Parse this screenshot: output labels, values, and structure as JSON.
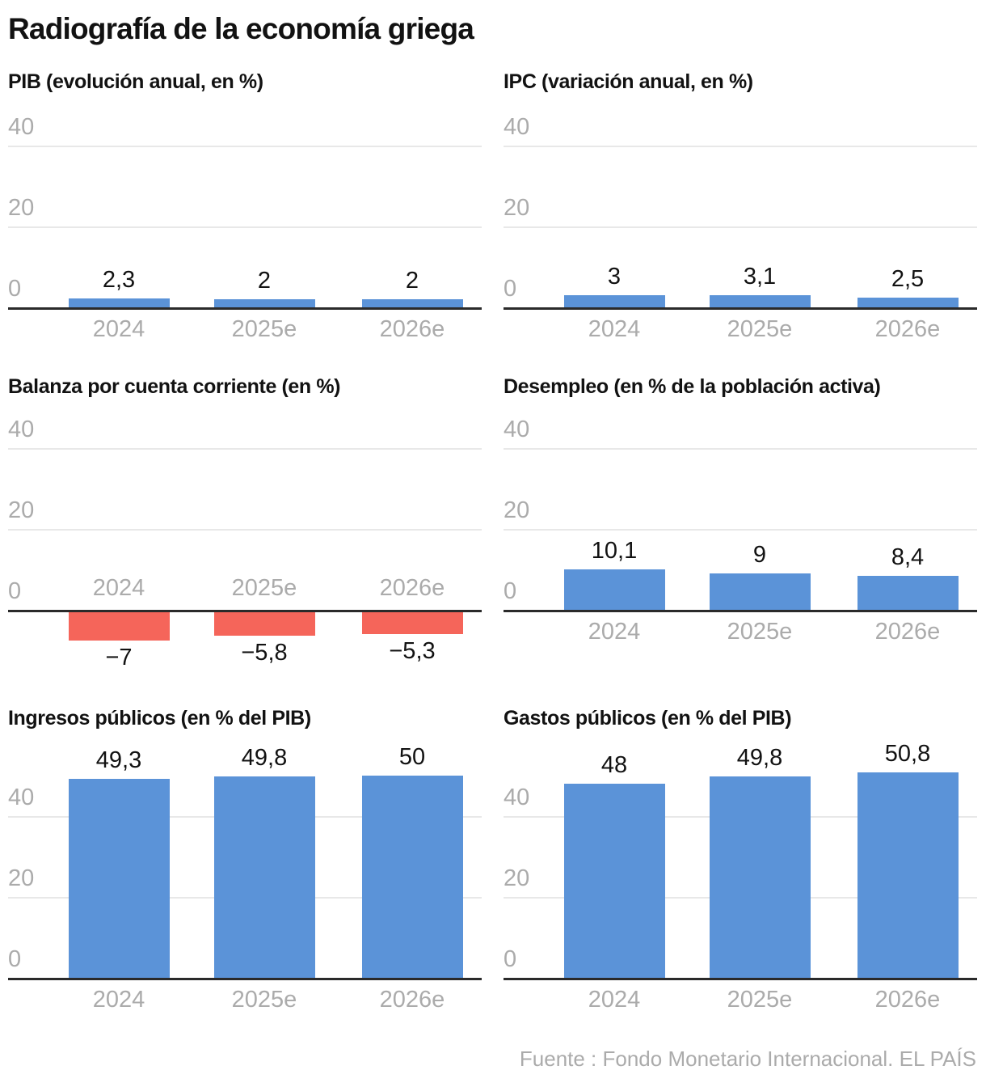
{
  "page": {
    "title": "Radiografía de la economía griega",
    "source": "Fuente : Fondo Monetario Internacional. EL PAÍS"
  },
  "colors": {
    "bar_positive": "#5B93D8",
    "bar_negative": "#F5655A",
    "text": "#121212",
    "muted_labels": "#ABABAB",
    "gridline": "#E8E8E8",
    "axis": "#2A2A2A"
  },
  "chart_data": [
    {
      "type": "bar",
      "title": "PIB (evolución anual, en %)",
      "categories": [
        "2024",
        "2025e",
        "2026e"
      ],
      "values": [
        2.3,
        2,
        2
      ],
      "value_labels": [
        "2,3",
        "2",
        "2"
      ],
      "yticks": [
        0,
        20,
        40
      ],
      "ylim": [
        0,
        48
      ],
      "grid": true,
      "legend": "none"
    },
    {
      "type": "bar",
      "title": "IPC (variación anual, en %)",
      "categories": [
        "2024",
        "2025e",
        "2026e"
      ],
      "values": [
        3,
        3.1,
        2.5
      ],
      "value_labels": [
        "3",
        "3,1",
        "2,5"
      ],
      "yticks": [
        0,
        20,
        40
      ],
      "ylim": [
        0,
        48
      ],
      "grid": true,
      "legend": "none"
    },
    {
      "type": "bar",
      "title": "Balanza por cuenta corriente (en %)",
      "categories": [
        "2024",
        "2025e",
        "2026e"
      ],
      "values": [
        -7,
        -5.8,
        -5.3
      ],
      "value_labels": [
        "−7",
        "−5,8",
        "−5,3"
      ],
      "yticks": [
        0,
        20,
        40
      ],
      "ylim": [
        -14,
        47
      ],
      "grid": true,
      "legend": "none"
    },
    {
      "type": "bar",
      "title": "Desempleo (en % de la población activa)",
      "categories": [
        "2024",
        "2025e",
        "2026e"
      ],
      "values": [
        10.1,
        9,
        8.4
      ],
      "value_labels": [
        "10,1",
        "9",
        "8,4"
      ],
      "yticks": [
        0,
        20,
        40
      ],
      "ylim": [
        -14,
        47
      ],
      "grid": true,
      "legend": "none"
    },
    {
      "type": "bar",
      "title": "Ingresos públicos (en % del PIB)",
      "categories": [
        "2024",
        "2025e",
        "2026e"
      ],
      "values": [
        49.3,
        49.8,
        50
      ],
      "value_labels": [
        "49,3",
        "49,8",
        "50"
      ],
      "yticks": [
        0,
        20,
        40
      ],
      "ylim": [
        0,
        56
      ],
      "grid": true,
      "legend": "none"
    },
    {
      "type": "bar",
      "title": "Gastos públicos (en % del PIB)",
      "categories": [
        "2024",
        "2025e",
        "2026e"
      ],
      "values": [
        48,
        49.8,
        50.8
      ],
      "value_labels": [
        "48",
        "49,8",
        "50,8"
      ],
      "yticks": [
        0,
        20,
        40
      ],
      "ylim": [
        0,
        56
      ],
      "grid": true,
      "legend": "none"
    }
  ]
}
